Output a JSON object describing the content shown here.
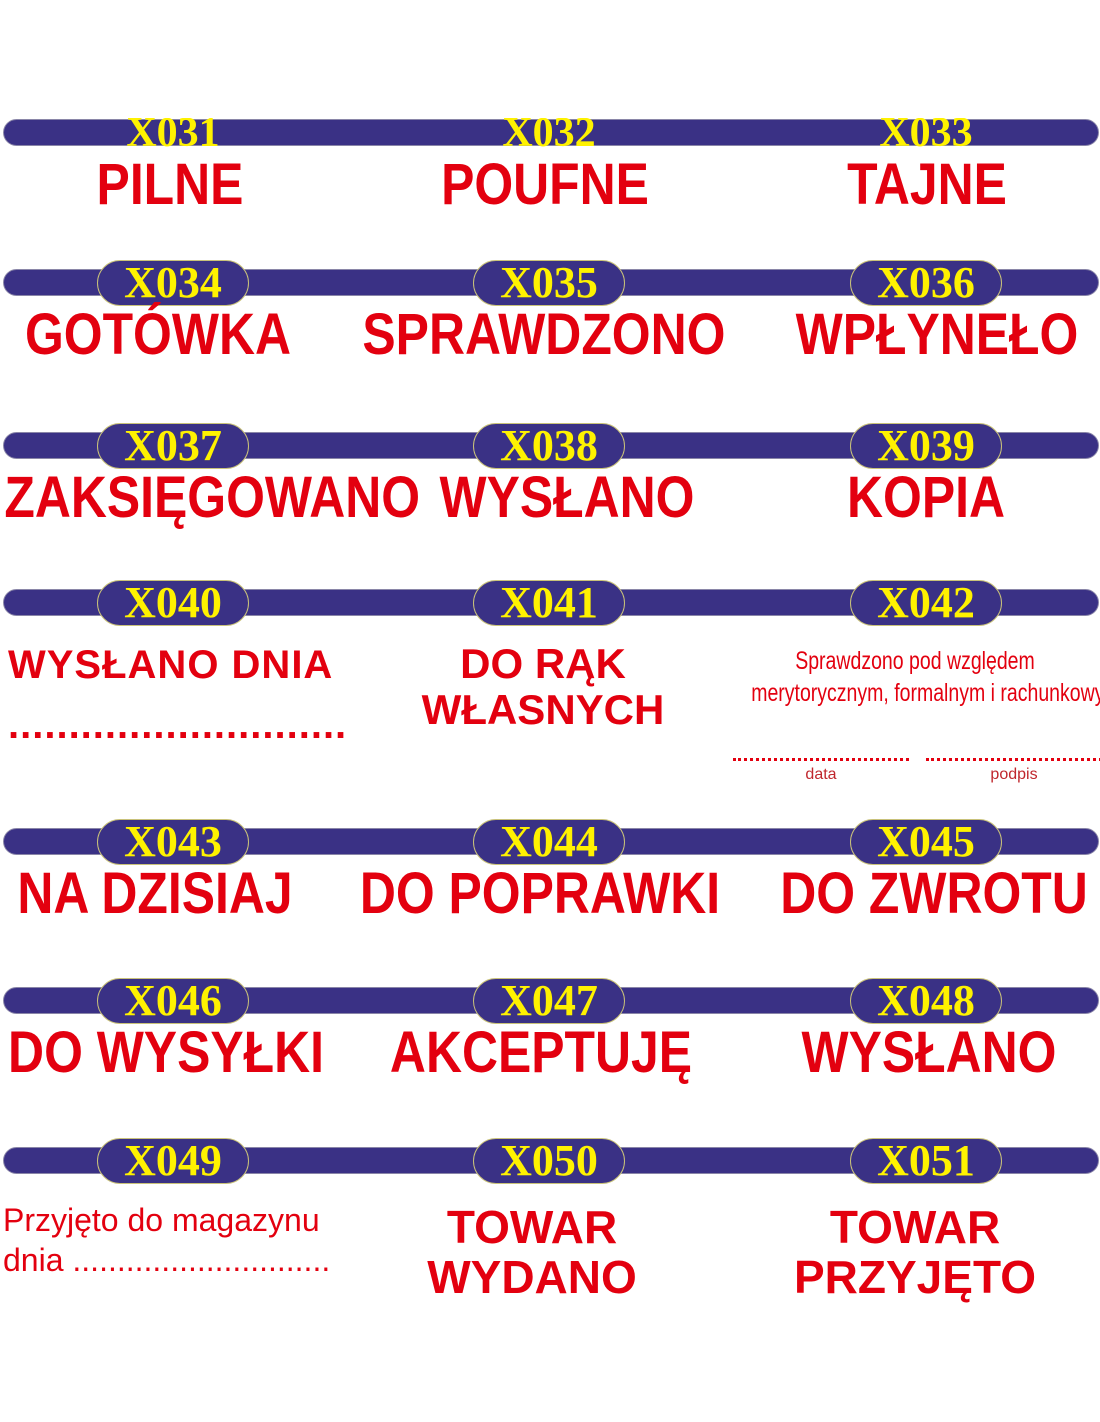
{
  "colors": {
    "bar": "#3a3185",
    "code": "#fff200",
    "text": "#e3000f"
  },
  "rows": [
    [
      {
        "code": "X031",
        "lines": [
          "PILNE"
        ]
      },
      {
        "code": "X032",
        "lines": [
          "POUFNE"
        ]
      },
      {
        "code": "X033",
        "lines": [
          "TAJNE"
        ]
      }
    ],
    [
      {
        "code": "X034",
        "lines": [
          "GOTÓWKA"
        ]
      },
      {
        "code": "X035",
        "lines": [
          "SPRAWDZONO"
        ]
      },
      {
        "code": "X036",
        "lines": [
          "WPŁYNEŁO"
        ]
      }
    ],
    [
      {
        "code": "X037",
        "lines": [
          "ZAKSIĘGOWANO"
        ]
      },
      {
        "code": "X038",
        "lines": [
          "WYSŁANO"
        ]
      },
      {
        "code": "X039",
        "lines": [
          "KOPIA"
        ]
      }
    ],
    [
      {
        "code": "X040",
        "lines": [
          "WYSŁANO DNIA",
          "............................"
        ]
      },
      {
        "code": "X041",
        "lines": [
          "DO RĄK",
          "WŁASNYCH"
        ]
      },
      {
        "code": "X042",
        "lines": [
          "Sprawdzono pod względem",
          "merytorycznym, formalnym i rachunkowym"
        ],
        "fields": [
          "data",
          "podpis"
        ]
      }
    ],
    [
      {
        "code": "X043",
        "lines": [
          "NA DZISIAJ"
        ]
      },
      {
        "code": "X044",
        "lines": [
          "DO POPRAWKI"
        ]
      },
      {
        "code": "X045",
        "lines": [
          "DO ZWROTU"
        ]
      }
    ],
    [
      {
        "code": "X046",
        "lines": [
          "DO WYSYŁKI"
        ]
      },
      {
        "code": "X047",
        "lines": [
          "AKCEPTUJĘ"
        ]
      },
      {
        "code": "X048",
        "lines": [
          "WYSŁANO"
        ]
      }
    ],
    [
      {
        "code": "X049",
        "lines": [
          "Przyjęto do magazynu",
          "dnia ............................."
        ]
      },
      {
        "code": "X050",
        "lines": [
          "TOWAR",
          "WYDANO"
        ]
      },
      {
        "code": "X051",
        "lines": [
          "TOWAR",
          "PRZYJĘTO"
        ]
      }
    ]
  ]
}
